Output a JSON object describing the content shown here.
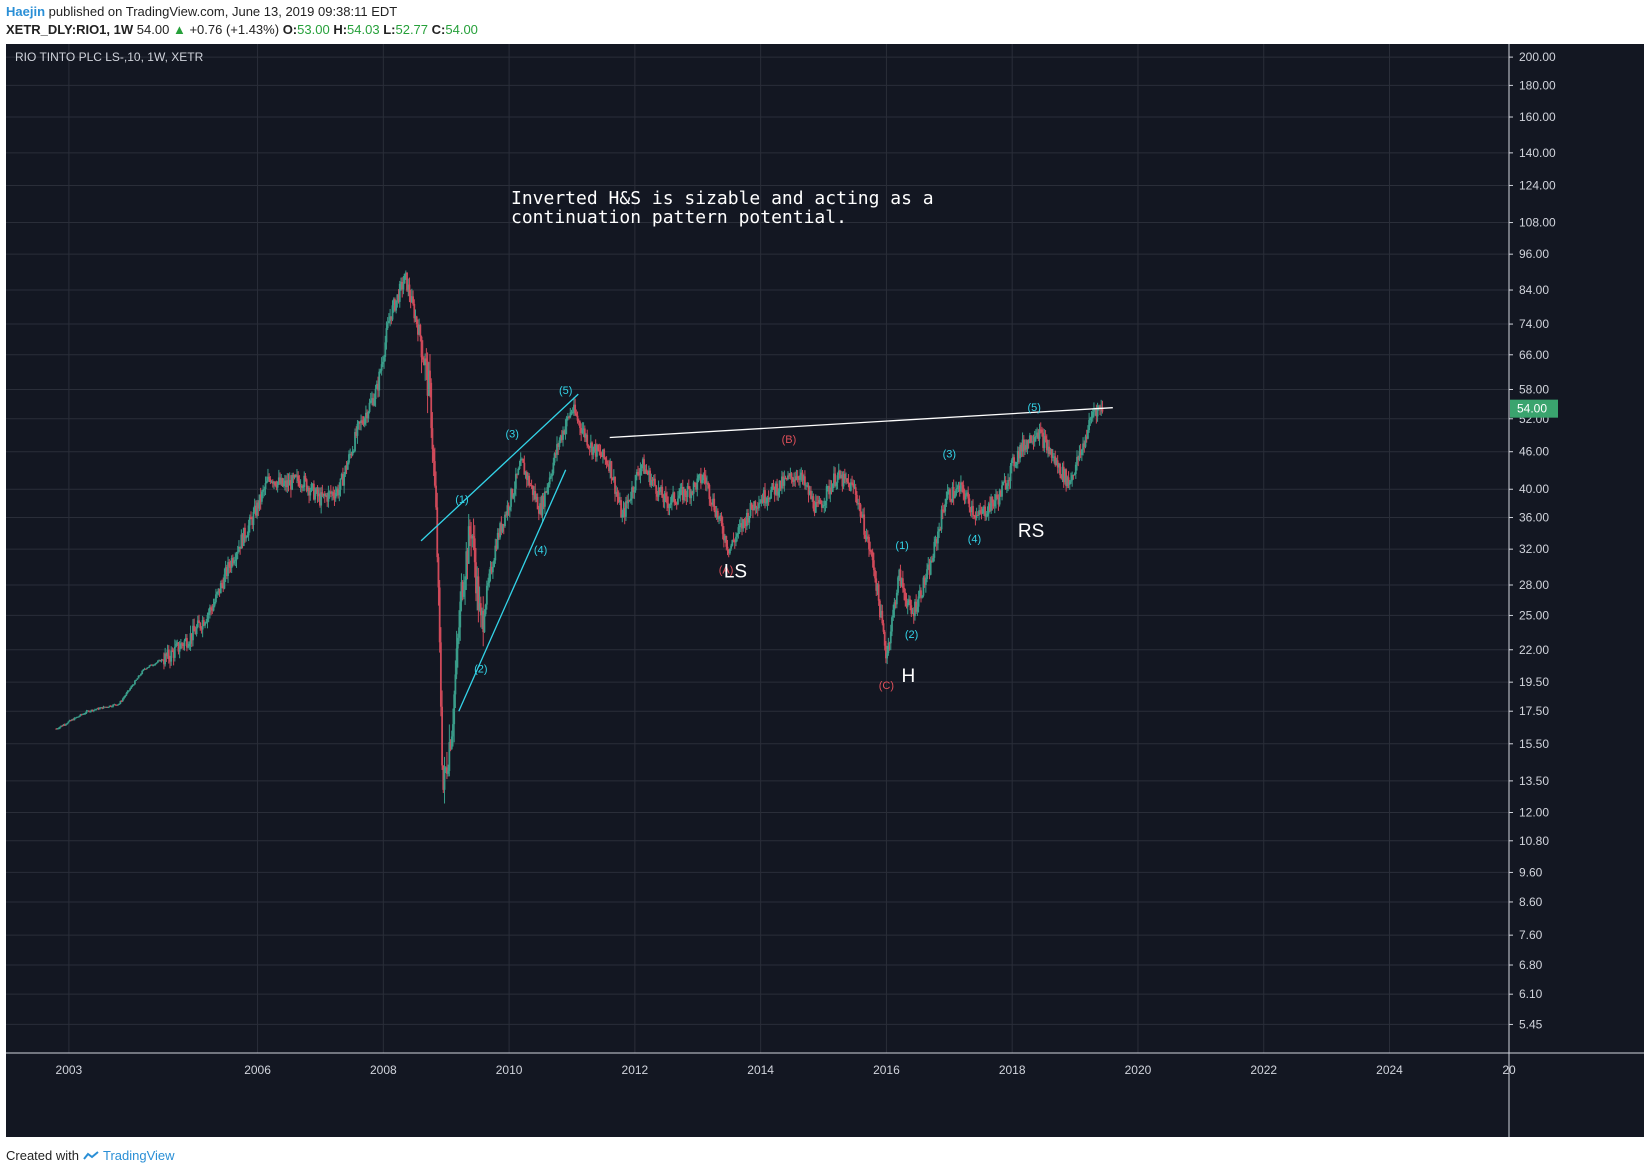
{
  "header": {
    "author": "Haejin",
    "published": "published on TradingView.com, June 13, 2019 09:38:11 EDT"
  },
  "quote": {
    "symbol": "XETR_DLY:RIO1, 1W",
    "last": "54.00",
    "change": "+0.76 (+1.43%)",
    "open_label": "O:",
    "open": "53.00",
    "high_label": "H:",
    "high": "54.03",
    "low_label": "L:",
    "low": "52.77",
    "close_label": "C:",
    "close": "54.00"
  },
  "footer": {
    "created_with": "Created with",
    "brand": "TradingView"
  },
  "colors": {
    "background": "#131722",
    "grid": "#2a2e39",
    "axis_text": "#d1d4dc",
    "up": "#3a9d8a",
    "down": "#d04a5a",
    "cyan": "#33d4e8",
    "red": "#e0505a",
    "price_tag": "#3aa46e"
  },
  "chart_data": {
    "type": "candlestick",
    "title": "RIO TINTO PLC LS-,10, 1W, XETR",
    "y_scale": "log",
    "ylim": [
      4.9,
      210
    ],
    "xlim": [
      2002.0,
      2025.9
    ],
    "x_ticks": [
      "2003",
      "2006",
      "2008",
      "2010",
      "2012",
      "2014",
      "2016",
      "2018",
      "2020",
      "2022",
      "2024",
      "20"
    ],
    "x_tick_values": [
      2003.0,
      2006.0,
      2008.0,
      2010.0,
      2012.0,
      2014.0,
      2016.0,
      2018.0,
      2020.0,
      2022.0,
      2024.0,
      2025.9
    ],
    "y_ticks": [
      "200.00",
      "180.00",
      "160.00",
      "140.00",
      "124.00",
      "108.00",
      "96.00",
      "84.00",
      "74.00",
      "66.00",
      "58.00",
      "52.00",
      "46.00",
      "40.00",
      "36.00",
      "32.00",
      "28.00",
      "25.00",
      "22.00",
      "19.50",
      "17.50",
      "15.50",
      "13.50",
      "12.00",
      "10.80",
      "9.60",
      "8.60",
      "7.60",
      "6.80",
      "6.10",
      "5.45"
    ],
    "price_tag": "54.00",
    "grid": true,
    "price_path": [
      [
        2002.8,
        16.4
      ],
      [
        2003.3,
        17.5
      ],
      [
        2003.8,
        18.0
      ],
      [
        2004.2,
        20.5
      ],
      [
        2004.6,
        21.5
      ],
      [
        2005.0,
        23.5
      ],
      [
        2005.3,
        26.0
      ],
      [
        2005.6,
        31.0
      ],
      [
        2005.9,
        35.5
      ],
      [
        2006.2,
        42.0
      ],
      [
        2006.4,
        40.5
      ],
      [
        2006.7,
        41.5
      ],
      [
        2007.0,
        38.5
      ],
      [
        2007.3,
        40.0
      ],
      [
        2007.6,
        50.0
      ],
      [
        2007.9,
        58.0
      ],
      [
        2008.1,
        76.0
      ],
      [
        2008.35,
        88.0
      ],
      [
        2008.6,
        70.0
      ],
      [
        2008.75,
        56.0
      ],
      [
        2008.85,
        34.0
      ],
      [
        2008.95,
        13.0
      ],
      [
        2009.1,
        17.0
      ],
      [
        2009.25,
        28.0
      ],
      [
        2009.4,
        35.0
      ],
      [
        2009.55,
        24.0
      ],
      [
        2009.8,
        33.0
      ],
      [
        2010.2,
        44.0
      ],
      [
        2010.5,
        37.0
      ],
      [
        2010.8,
        48.0
      ],
      [
        2011.0,
        54.0
      ],
      [
        2011.3,
        47.0
      ],
      [
        2011.6,
        44.0
      ],
      [
        2011.8,
        36.0
      ],
      [
        2012.1,
        44.0
      ],
      [
        2012.5,
        38.0
      ],
      [
        2012.9,
        40.0
      ],
      [
        2013.1,
        42.0
      ],
      [
        2013.5,
        32.0
      ],
      [
        2013.9,
        38.0
      ],
      [
        2014.3,
        40.5
      ],
      [
        2014.6,
        42.5
      ],
      [
        2014.9,
        37.0
      ],
      [
        2015.2,
        42.0
      ],
      [
        2015.5,
        40.0
      ],
      [
        2015.8,
        30.0
      ],
      [
        2016.0,
        21.5
      ],
      [
        2016.2,
        29.0
      ],
      [
        2016.4,
        25.0
      ],
      [
        2016.7,
        30.0
      ],
      [
        2016.95,
        39.0
      ],
      [
        2017.2,
        40.0
      ],
      [
        2017.45,
        36.0
      ],
      [
        2017.8,
        39.0
      ],
      [
        2018.1,
        46.0
      ],
      [
        2018.4,
        50.0
      ],
      [
        2018.7,
        44.0
      ],
      [
        2018.9,
        41.0
      ],
      [
        2019.1,
        46.0
      ],
      [
        2019.3,
        54.0
      ],
      [
        2019.45,
        54.0
      ]
    ],
    "trendlines": [
      {
        "color": "white",
        "from": [
          2011.6,
          48.5
        ],
        "to": [
          2019.6,
          54.2
        ]
      },
      {
        "color": "cyan",
        "from": [
          2008.6,
          33.0
        ],
        "to": [
          2011.1,
          57.0
        ]
      },
      {
        "color": "cyan",
        "from": [
          2009.2,
          17.5
        ],
        "to": [
          2010.9,
          43.0
        ]
      }
    ],
    "annotations": [
      {
        "text": "(1)",
        "color": "cyan",
        "x": 2009.25,
        "y": 38.0
      },
      {
        "text": "(2)",
        "color": "cyan",
        "x": 2009.55,
        "y": 20.2
      },
      {
        "text": "(3)",
        "color": "cyan",
        "x": 2010.05,
        "y": 48.5
      },
      {
        "text": "(4)",
        "color": "cyan",
        "x": 2010.5,
        "y": 31.5
      },
      {
        "text": "(5)",
        "color": "cyan",
        "x": 2010.9,
        "y": 57.0
      },
      {
        "text": "(A)",
        "color": "red",
        "x": 2013.45,
        "y": 29.2
      },
      {
        "text": "(B)",
        "color": "red",
        "x": 2014.45,
        "y": 47.5
      },
      {
        "text": "(C)",
        "color": "red",
        "x": 2016.0,
        "y": 19.0
      },
      {
        "text": "(1)",
        "color": "cyan",
        "x": 2016.25,
        "y": 32.0
      },
      {
        "text": "(2)",
        "color": "cyan",
        "x": 2016.4,
        "y": 23.0
      },
      {
        "text": "(3)",
        "color": "cyan",
        "x": 2017.0,
        "y": 45.0
      },
      {
        "text": "(4)",
        "color": "cyan",
        "x": 2017.4,
        "y": 32.8
      },
      {
        "text": "(5)",
        "color": "cyan",
        "x": 2018.35,
        "y": 53.5
      },
      {
        "text": "LS",
        "color": "white",
        "x": 2013.6,
        "y": 28.8,
        "size": "big"
      },
      {
        "text": "H",
        "color": "white",
        "x": 2016.35,
        "y": 19.5,
        "size": "big"
      },
      {
        "text": "RS",
        "color": "white",
        "x": 2018.3,
        "y": 33.5,
        "size": "big"
      }
    ],
    "note_lines": [
      "Inverted H&S is sizable and acting as a",
      "continuation pattern potential."
    ]
  }
}
